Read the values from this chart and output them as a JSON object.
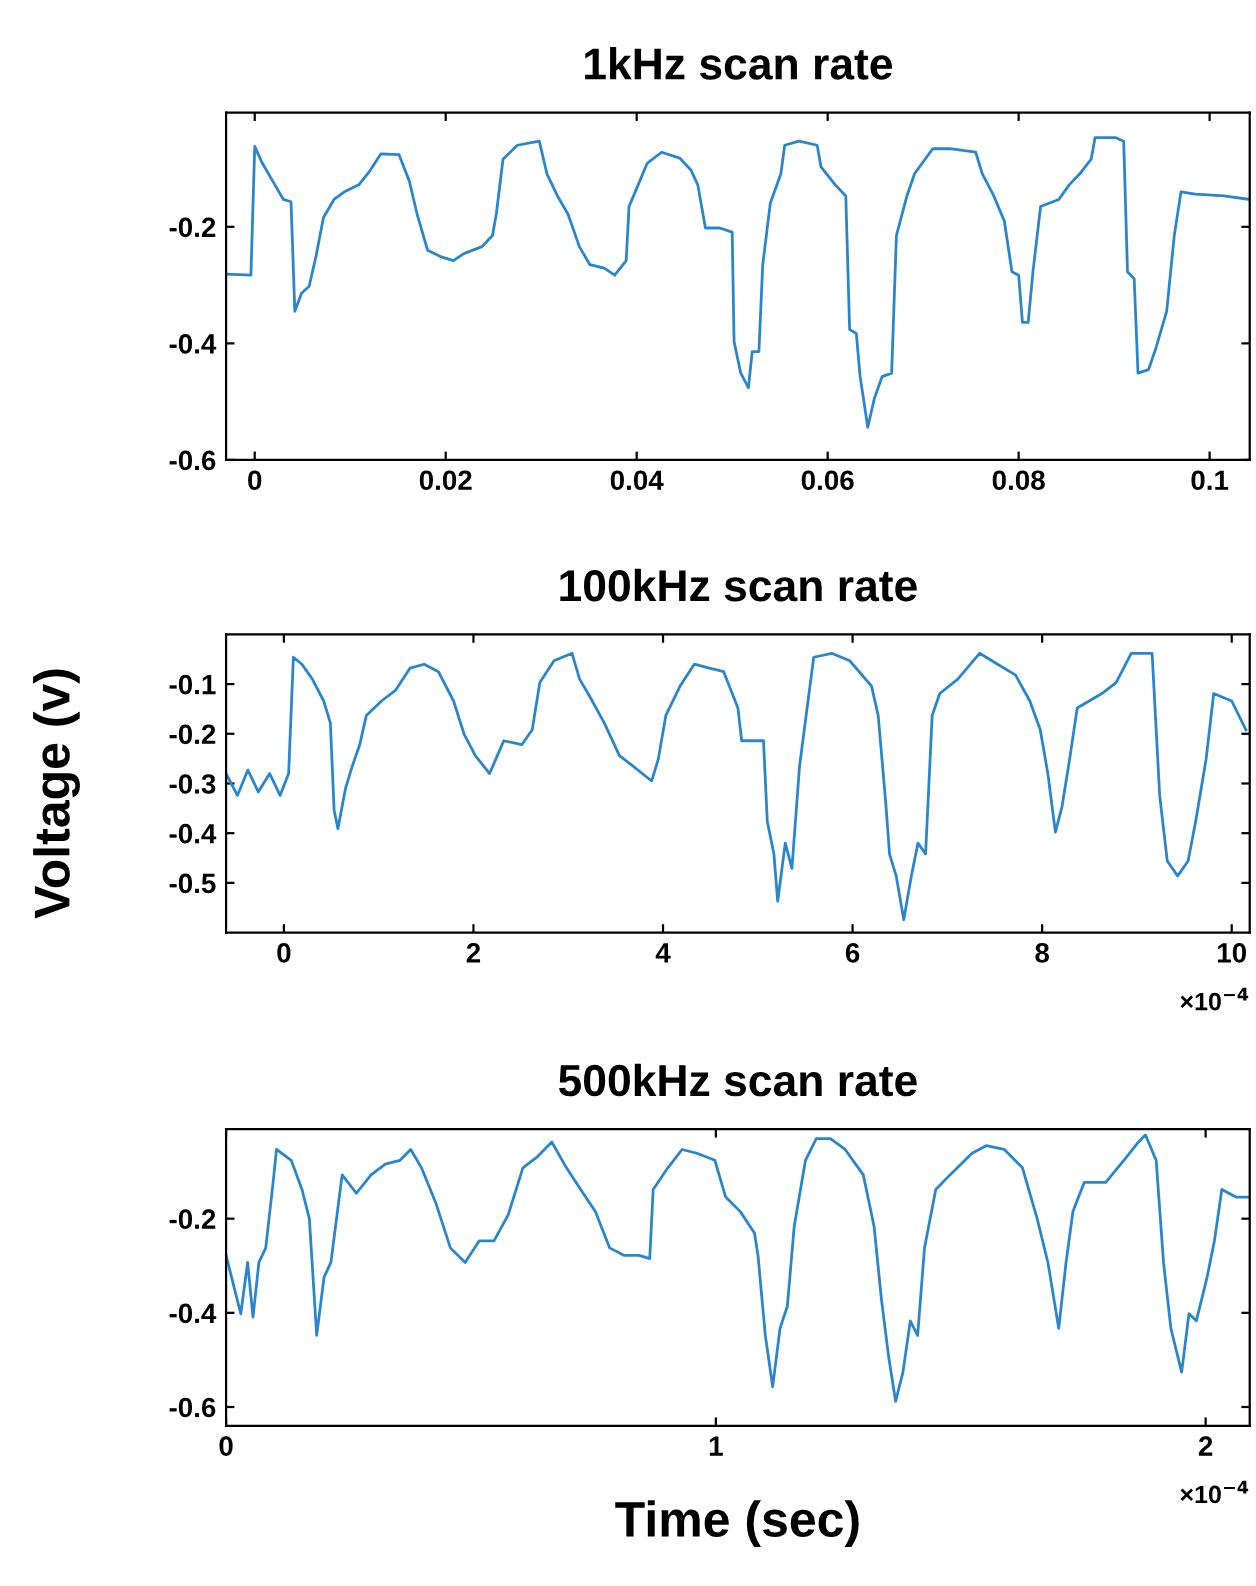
{
  "chart_data": [
    {
      "type": "line",
      "title": "1kHz scan rate",
      "color": "#2a86cc",
      "grid": false,
      "xlim": [
        -0.003,
        0.1042
      ],
      "xticks": [
        0,
        0.02,
        0.04,
        0.06,
        0.08,
        0.1
      ],
      "ylim": [
        -0.6,
        -0.004
      ],
      "yticks": [
        -0.6,
        -0.4,
        -0.2
      ],
      "x": [
        -0.003,
        -0.0004,
        0,
        0.0008,
        0.0019,
        0.003,
        0.0038,
        0.0042,
        0.0049,
        0.0057,
        0.0064,
        0.0072,
        0.0083,
        0.0094,
        0.0109,
        0.0121,
        0.0132,
        0.0151,
        0.0162,
        0.017,
        0.0181,
        0.0196,
        0.0208,
        0.0219,
        0.0238,
        0.0249,
        0.0253,
        0.026,
        0.0275,
        0.0298,
        0.0306,
        0.0317,
        0.0328,
        0.034,
        0.0351,
        0.0366,
        0.0377,
        0.0389,
        0.0392,
        0.04,
        0.0411,
        0.0426,
        0.0445,
        0.0457,
        0.0464,
        0.0472,
        0.0487,
        0.05,
        0.0502,
        0.0509,
        0.0517,
        0.0521,
        0.0528,
        0.0532,
        0.054,
        0.0551,
        0.0555,
        0.057,
        0.0589,
        0.0593,
        0.0608,
        0.0619,
        0.0623,
        0.063,
        0.0634,
        0.0642,
        0.0649,
        0.0657,
        0.0667,
        0.0672,
        0.0683,
        0.0691,
        0.071,
        0.0728,
        0.0755,
        0.0762,
        0.0774,
        0.0785,
        0.0793,
        0.08,
        0.0804,
        0.081,
        0.0815,
        0.0823,
        0.0842,
        0.0853,
        0.0864,
        0.0876,
        0.088,
        0.0902,
        0.091,
        0.0914,
        0.0921,
        0.0925,
        0.0936,
        0.0944,
        0.0955,
        0.0963,
        0.097,
        0.0985,
        0.1015,
        0.1042
      ],
      "values": [
        -0.281,
        -0.283,
        -0.062,
        -0.091,
        -0.122,
        -0.153,
        -0.157,
        -0.345,
        -0.314,
        -0.302,
        -0.252,
        -0.184,
        -0.153,
        -0.14,
        -0.128,
        -0.103,
        -0.075,
        -0.076,
        -0.122,
        -0.178,
        -0.24,
        -0.252,
        -0.258,
        -0.246,
        -0.234,
        -0.215,
        -0.178,
        -0.084,
        -0.06,
        -0.053,
        -0.109,
        -0.147,
        -0.178,
        -0.234,
        -0.265,
        -0.271,
        -0.283,
        -0.258,
        -0.165,
        -0.134,
        -0.091,
        -0.072,
        -0.082,
        -0.103,
        -0.128,
        -0.202,
        -0.202,
        -0.209,
        -0.397,
        -0.451,
        -0.476,
        -0.414,
        -0.414,
        -0.265,
        -0.159,
        -0.109,
        -0.06,
        -0.053,
        -0.06,
        -0.097,
        -0.128,
        -0.147,
        -0.376,
        -0.383,
        -0.457,
        -0.544,
        -0.494,
        -0.457,
        -0.451,
        -0.215,
        -0.147,
        -0.109,
        -0.066,
        -0.066,
        -0.072,
        -0.109,
        -0.147,
        -0.19,
        -0.277,
        -0.283,
        -0.364,
        -0.364,
        -0.277,
        -0.165,
        -0.153,
        -0.128,
        -0.109,
        -0.084,
        -0.047,
        -0.047,
        -0.053,
        -0.277,
        -0.289,
        -0.451,
        -0.445,
        -0.407,
        -0.345,
        -0.215,
        -0.14,
        -0.144,
        -0.147,
        -0.153
      ]
    },
    {
      "type": "line",
      "title": "100kHz scan rate",
      "ylabel": "Voltage (v)",
      "color": "#2a86cc",
      "grid": false,
      "annotations": [
        "×10$^{−4}$"
      ],
      "xlim": [
        -0.61,
        10.19
      ],
      "xticks": [
        0,
        2,
        4,
        6,
        8,
        10
      ],
      "ylim": [
        -0.6,
        0.0
      ],
      "yticks": [
        -0.5,
        -0.4,
        -0.3,
        -0.2,
        -0.1
      ],
      "x": [
        -0.61,
        -0.49,
        -0.38,
        -0.27,
        -0.15,
        -0.04,
        0.05,
        0.1,
        0.19,
        0.3,
        0.42,
        0.49,
        0.53,
        0.57,
        0.65,
        0.72,
        0.8,
        0.87,
        1.03,
        1.18,
        1.33,
        1.48,
        1.63,
        1.79,
        1.9,
        2.02,
        2.17,
        2.32,
        2.51,
        2.62,
        2.7,
        2.85,
        3.04,
        3.12,
        3.23,
        3.38,
        3.54,
        3.69,
        3.88,
        3.95,
        4.03,
        4.18,
        4.33,
        4.49,
        4.64,
        4.79,
        4.83,
        5.06,
        5.1,
        5.17,
        5.21,
        5.29,
        5.36,
        5.44,
        5.51,
        5.59,
        5.78,
        5.97,
        6.2,
        6.27,
        6.35,
        6.39,
        6.46,
        6.54,
        6.62,
        6.69,
        6.77,
        6.84,
        6.92,
        7.11,
        7.34,
        7.53,
        7.72,
        7.87,
        7.98,
        8.06,
        8.14,
        8.21,
        8.29,
        8.37,
        8.63,
        8.78,
        8.94,
        9.16,
        9.24,
        9.32,
        9.43,
        9.54,
        9.62,
        9.73,
        9.81,
        10.0,
        10.15
      ],
      "values": [
        -0.28,
        -0.324,
        -0.273,
        -0.317,
        -0.28,
        -0.324,
        -0.28,
        -0.046,
        -0.06,
        -0.09,
        -0.134,
        -0.178,
        -0.354,
        -0.391,
        -0.31,
        -0.266,
        -0.222,
        -0.163,
        -0.134,
        -0.112,
        -0.068,
        -0.06,
        -0.075,
        -0.134,
        -0.2,
        -0.244,
        -0.28,
        -0.214,
        -0.222,
        -0.192,
        -0.097,
        -0.053,
        -0.038,
        -0.09,
        -0.126,
        -0.178,
        -0.244,
        -0.266,
        -0.295,
        -0.251,
        -0.163,
        -0.104,
        -0.06,
        -0.068,
        -0.075,
        -0.148,
        -0.214,
        -0.214,
        -0.376,
        -0.442,
        -0.537,
        -0.42,
        -0.471,
        -0.266,
        -0.163,
        -0.046,
        -0.038,
        -0.053,
        -0.104,
        -0.163,
        -0.339,
        -0.442,
        -0.486,
        -0.574,
        -0.486,
        -0.42,
        -0.442,
        -0.163,
        -0.119,
        -0.09,
        -0.038,
        -0.06,
        -0.082,
        -0.134,
        -0.192,
        -0.28,
        -0.398,
        -0.346,
        -0.251,
        -0.148,
        -0.119,
        -0.097,
        -0.038,
        -0.038,
        -0.324,
        -0.456,
        -0.486,
        -0.456,
        -0.376,
        -0.251,
        -0.119,
        -0.134,
        -0.192
      ]
    },
    {
      "type": "line",
      "title": "500kHz scan rate",
      "xlabel": "Time (sec)",
      "color": "#2a86cc",
      "grid": false,
      "annotations": [
        "×10$^{−4}$"
      ],
      "xlim": [
        0,
        2.09
      ],
      "xticks": [
        0,
        1,
        2
      ],
      "ylim": [
        -0.64,
        -0.01
      ],
      "yticks": [
        -0.6,
        -0.4,
        -0.2
      ],
      "x": [
        0,
        0.015,
        0.03,
        0.044,
        0.055,
        0.067,
        0.081,
        0.096,
        0.103,
        0.133,
        0.155,
        0.17,
        0.185,
        0.2,
        0.214,
        0.237,
        0.266,
        0.296,
        0.325,
        0.355,
        0.377,
        0.399,
        0.429,
        0.458,
        0.488,
        0.517,
        0.547,
        0.576,
        0.606,
        0.636,
        0.665,
        0.695,
        0.724,
        0.754,
        0.783,
        0.813,
        0.843,
        0.865,
        0.872,
        0.902,
        0.931,
        0.961,
        0.998,
        1.02,
        1.05,
        1.079,
        1.086,
        1.101,
        1.116,
        1.131,
        1.146,
        1.16,
        1.183,
        1.205,
        1.234,
        1.264,
        1.301,
        1.323,
        1.338,
        1.353,
        1.367,
        1.382,
        1.397,
        1.412,
        1.426,
        1.449,
        1.478,
        1.523,
        1.552,
        1.589,
        1.626,
        1.656,
        1.678,
        1.7,
        1.715,
        1.729,
        1.752,
        1.796,
        1.833,
        1.863,
        1.877,
        1.899,
        1.914,
        1.929,
        1.951,
        1.966,
        1.981,
        2.003,
        2.018,
        2.033,
        2.062,
        2.09
      ],
      "values": [
        -0.278,
        -0.34,
        -0.402,
        -0.293,
        -0.409,
        -0.293,
        -0.262,
        -0.123,
        -0.053,
        -0.076,
        -0.138,
        -0.2,
        -0.448,
        -0.324,
        -0.293,
        -0.107,
        -0.146,
        -0.107,
        -0.084,
        -0.076,
        -0.053,
        -0.092,
        -0.169,
        -0.262,
        -0.293,
        -0.247,
        -0.247,
        -0.192,
        -0.092,
        -0.068,
        -0.037,
        -0.092,
        -0.138,
        -0.185,
        -0.262,
        -0.278,
        -0.278,
        -0.285,
        -0.138,
        -0.092,
        -0.053,
        -0.061,
        -0.076,
        -0.154,
        -0.185,
        -0.231,
        -0.278,
        -0.448,
        -0.557,
        -0.433,
        -0.386,
        -0.216,
        -0.076,
        -0.03,
        -0.03,
        -0.053,
        -0.107,
        -0.216,
        -0.371,
        -0.495,
        -0.588,
        -0.526,
        -0.417,
        -0.448,
        -0.262,
        -0.138,
        -0.107,
        -0.061,
        -0.045,
        -0.053,
        -0.092,
        -0.2,
        -0.293,
        -0.433,
        -0.293,
        -0.185,
        -0.123,
        -0.123,
        -0.076,
        -0.037,
        -0.022,
        -0.076,
        -0.293,
        -0.433,
        -0.526,
        -0.402,
        -0.417,
        -0.324,
        -0.247,
        -0.138,
        -0.154,
        -0.154
      ]
    }
  ]
}
